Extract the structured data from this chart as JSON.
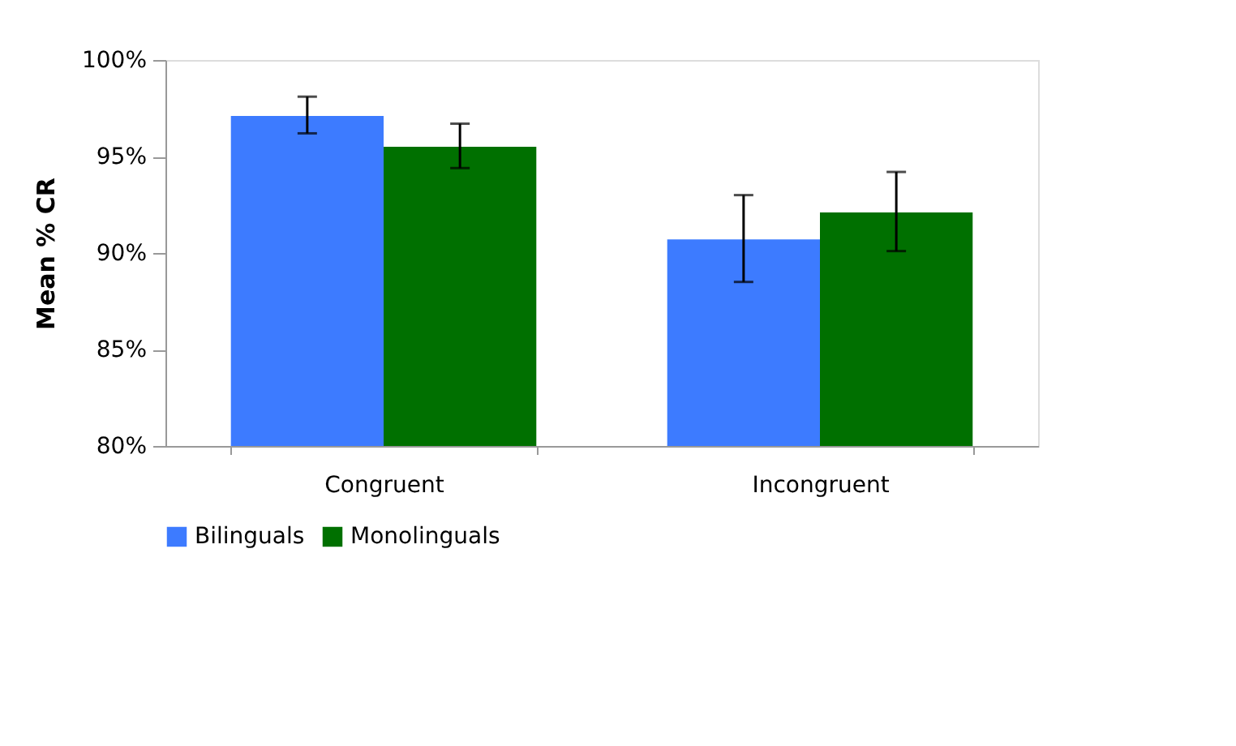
{
  "chart_data": {
    "type": "bar",
    "ylabel": "Mean % CR",
    "categories": [
      "Congruent",
      "Incongruent"
    ],
    "series": [
      {
        "name": "Bilinguals",
        "color": "#3d7bff",
        "values": [
          97.1,
          90.7
        ],
        "errors": [
          [
            96.2,
            98.1
          ],
          [
            88.5,
            93.0
          ]
        ]
      },
      {
        "name": "Monolinguals",
        "color": "#007000",
        "values": [
          95.5,
          92.1
        ],
        "errors": [
          [
            94.4,
            96.7
          ],
          [
            90.1,
            94.2
          ]
        ]
      }
    ],
    "ylim": [
      80,
      100
    ],
    "yticks": [
      {
        "value": 80,
        "label": "80%"
      },
      {
        "value": 85,
        "label": "85%"
      },
      {
        "value": 90,
        "label": "90%"
      },
      {
        "value": 95,
        "label": "95%"
      },
      {
        "value": 100,
        "label": "100%"
      }
    ],
    "grid": false,
    "legend": "bottom"
  }
}
